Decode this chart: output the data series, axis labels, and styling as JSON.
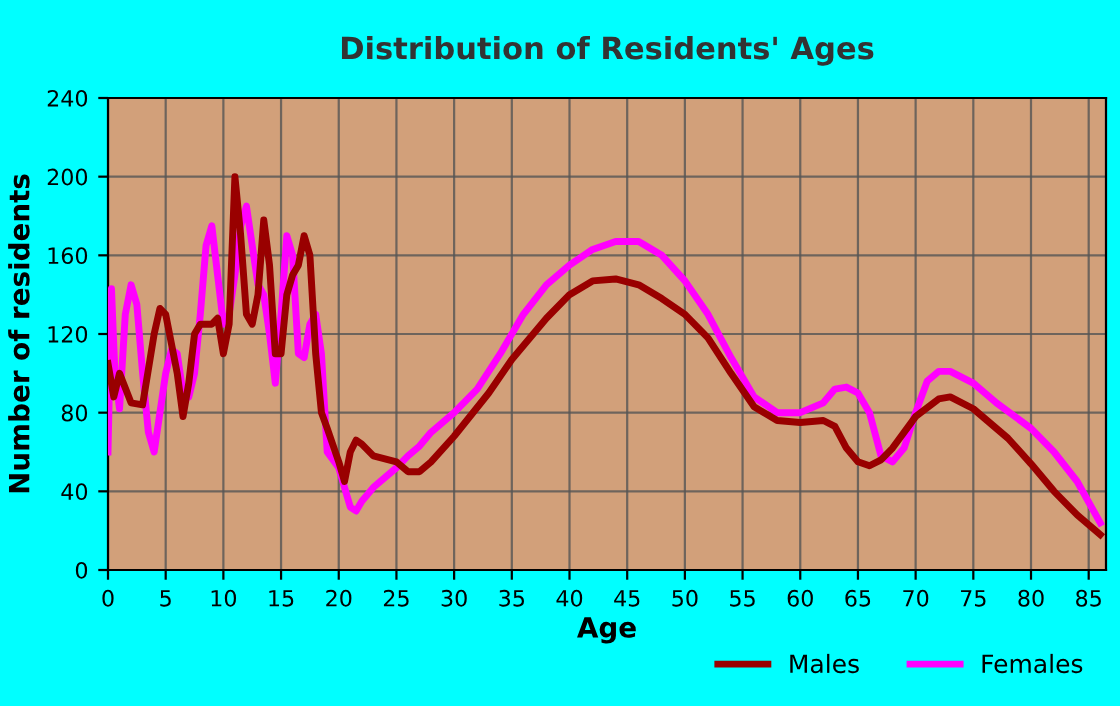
{
  "chart_data": {
    "type": "line",
    "title": "Distribution of Residents' Ages",
    "xlabel": "Age",
    "ylabel": "Number of residents",
    "xlim": [
      0,
      86.5
    ],
    "ylim": [
      0,
      240
    ],
    "xticks": [
      0,
      5,
      10,
      15,
      20,
      25,
      30,
      35,
      40,
      45,
      50,
      55,
      60,
      65,
      70,
      75,
      80,
      85
    ],
    "yticks": [
      0,
      40,
      80,
      120,
      160,
      200,
      240
    ],
    "grid": true,
    "legend": "bottom",
    "marker": "none",
    "line_style": "solid",
    "series": [
      {
        "name": "Males",
        "color": "#990000",
        "x": [
          0,
          0.5,
          1,
          2,
          3,
          4,
          4.5,
          5,
          6,
          6.5,
          7,
          7.5,
          8,
          9,
          9.5,
          10,
          10.5,
          11,
          11.5,
          12,
          12.5,
          13,
          13.5,
          14,
          14.5,
          15,
          15.5,
          16,
          16.5,
          17,
          17.5,
          18,
          18.5,
          19,
          20,
          20.5,
          21,
          21.5,
          22,
          23,
          25,
          26,
          27,
          28,
          30,
          33,
          35,
          38,
          40,
          42,
          44,
          46,
          48,
          50,
          52,
          54,
          56,
          58,
          60,
          62,
          63,
          64,
          65,
          66,
          67,
          68,
          70,
          72,
          73,
          75,
          78,
          80,
          82,
          84,
          86
        ],
        "values": [
          105,
          88,
          100,
          85,
          84,
          120,
          133,
          130,
          100,
          78,
          95,
          120,
          125,
          125,
          128,
          110,
          125,
          200,
          170,
          130,
          125,
          140,
          178,
          155,
          110,
          110,
          140,
          150,
          155,
          170,
          160,
          110,
          80,
          72,
          55,
          45,
          60,
          66,
          64,
          58,
          55,
          50,
          50,
          55,
          68,
          90,
          107,
          128,
          140,
          147,
          148,
          145,
          138,
          130,
          118,
          100,
          83,
          76,
          75,
          76,
          73,
          62,
          55,
          53,
          56,
          62,
          78,
          87,
          88,
          82,
          67,
          54,
          40,
          28,
          18
        ]
      },
      {
        "name": "Females",
        "color": "#ff00ff",
        "x": [
          0,
          0.3,
          0.6,
          1,
          1.5,
          2,
          2.5,
          3,
          3.5,
          4,
          4.5,
          5,
          5.5,
          6,
          6.5,
          7,
          7.5,
          8,
          8.5,
          9,
          9.5,
          10,
          10.5,
          11,
          11.5,
          12,
          12.5,
          13,
          13.5,
          14,
          14.5,
          15,
          15.5,
          16,
          16.5,
          17,
          17.5,
          18,
          18.5,
          19,
          20,
          21,
          21.5,
          22,
          23,
          25,
          26,
          27,
          28,
          30,
          32,
          34,
          36,
          38,
          40,
          42,
          44,
          46,
          48,
          50,
          52,
          54,
          56,
          58,
          60,
          62,
          63,
          64,
          65,
          66,
          67,
          68,
          69,
          70,
          71,
          72,
          73,
          75,
          77,
          80,
          82,
          84,
          86
        ],
        "values": [
          60,
          143,
          100,
          82,
          130,
          145,
          135,
          100,
          70,
          60,
          80,
          100,
          112,
          110,
          90,
          88,
          100,
          130,
          165,
          175,
          150,
          125,
          130,
          150,
          175,
          185,
          165,
          145,
          140,
          120,
          95,
          130,
          170,
          160,
          110,
          108,
          125,
          130,
          110,
          60,
          52,
          32,
          30,
          35,
          42,
          52,
          58,
          63,
          70,
          80,
          92,
          110,
          130,
          145,
          155,
          163,
          167,
          167,
          160,
          147,
          130,
          108,
          88,
          80,
          80,
          85,
          92,
          93,
          90,
          80,
          58,
          55,
          62,
          80,
          96,
          101,
          101,
          95,
          85,
          72,
          60,
          45,
          24
        ]
      }
    ]
  }
}
